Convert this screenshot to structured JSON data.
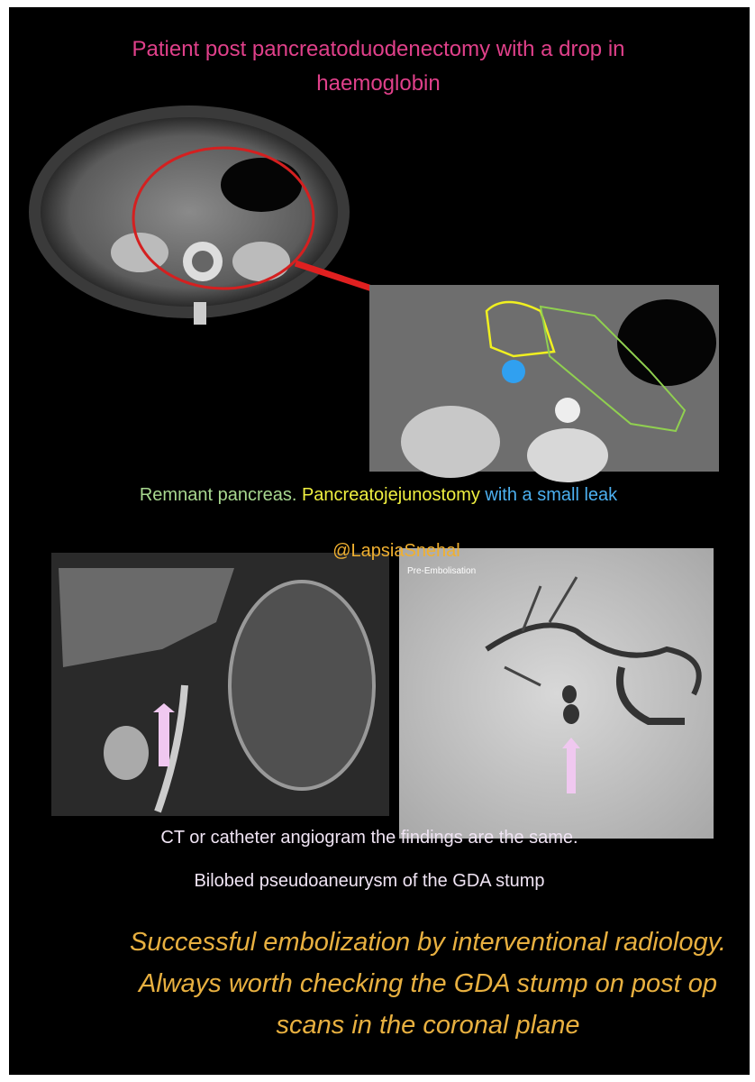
{
  "title": "Patient post pancreatoduodenectomy with a drop in haemoglobin",
  "axial_caption": {
    "remnant": "Remnant pancreas.",
    "anastomosis": "Pancreatojejunostomy",
    "leak": "with a small leak"
  },
  "handle": "@LapsiaSnehal",
  "angio_label": "Pre-Embolisation",
  "findings": "CT or catheter angiogram the findings are the same.",
  "diagnosis": "Bilobed pseudoaneurysm of the GDA stump",
  "conclusion": "Successful embolization by interventional radiology. Always worth checking the GDA stump on post op scans in the coronal plane"
}
